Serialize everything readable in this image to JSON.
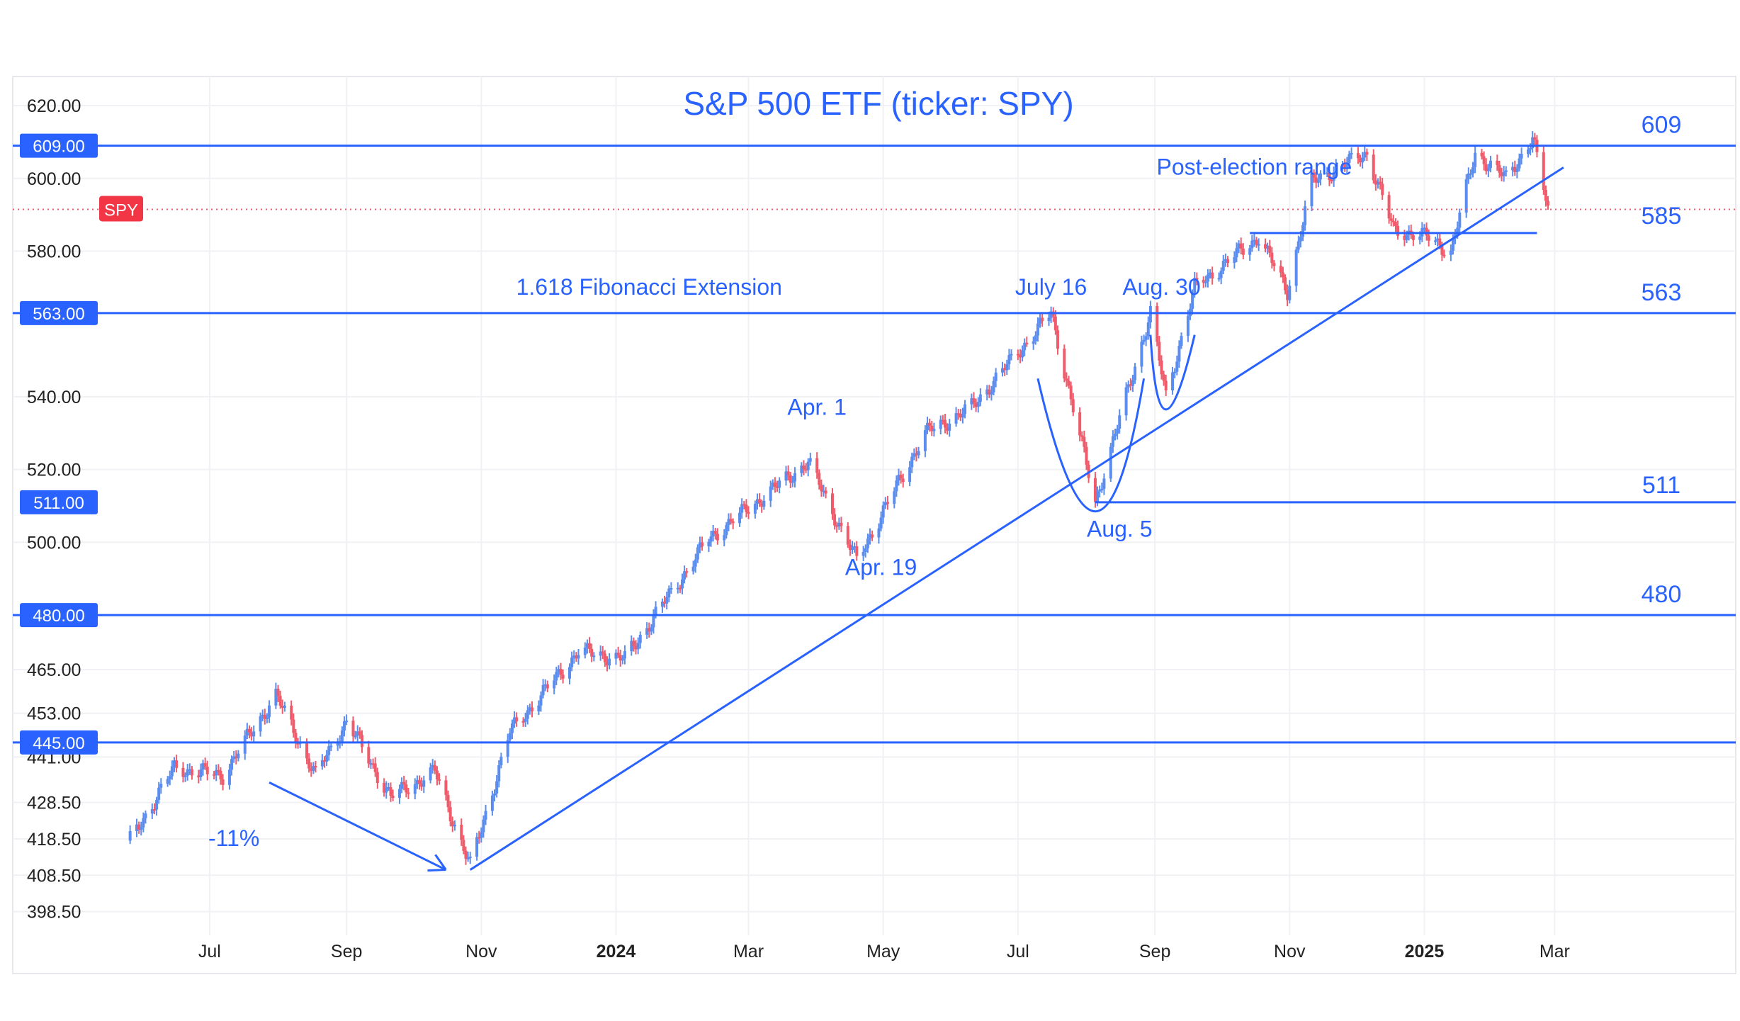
{
  "chart_data": {
    "type": "candlestick",
    "title": "S&P 500 ETF (ticker: SPY)",
    "symbol_tag": "SPY",
    "ylim": [
      392,
      628
    ],
    "y_ticks": [
      "620.00",
      "600.00",
      "580.00",
      "540.00",
      "520.00",
      "500.00",
      "465.00",
      "453.00",
      "441.00",
      "428.50",
      "418.50",
      "408.50",
      "398.50"
    ],
    "x_ticks": [
      {
        "label": "Jul",
        "date": "2023-07-01",
        "bold": false
      },
      {
        "label": "Sep",
        "date": "2023-09-01",
        "bold": false
      },
      {
        "label": "Nov",
        "date": "2023-11-01",
        "bold": false
      },
      {
        "label": "2024",
        "date": "2024-01-01",
        "bold": true
      },
      {
        "label": "Mar",
        "date": "2024-03-01",
        "bold": false
      },
      {
        "label": "May",
        "date": "2024-05-01",
        "bold": false
      },
      {
        "label": "Jul",
        "date": "2024-07-01",
        "bold": false
      },
      {
        "label": "Sep",
        "date": "2024-09-01",
        "bold": false
      },
      {
        "label": "Nov",
        "date": "2024-11-01",
        "bold": false
      },
      {
        "label": "2025",
        "date": "2025-01-01",
        "bold": true
      },
      {
        "label": "Mar",
        "date": "2025-03-01",
        "bold": false
      }
    ],
    "x_range": [
      "2023-05-12",
      "2025-05-22"
    ],
    "last_price": 591.5,
    "colors": {
      "up": "#5b8def",
      "down": "#ef5b6b",
      "line": "#2962ff",
      "text": "#2962ff",
      "axis_text": "#222222",
      "grid": "#f0f1f4"
    },
    "levels": [
      {
        "price": 609,
        "label": "609.00",
        "right_label": "609"
      },
      {
        "price": 563,
        "label": "563.00",
        "right_label": "563"
      },
      {
        "price": 480,
        "label": "480.00",
        "right_label": "480"
      },
      {
        "price": 445,
        "label": "445.00",
        "right_label": ""
      }
    ],
    "partial_levels": [
      {
        "price": 511,
        "label": "511.00",
        "right_label": "511",
        "from": "2024-08-05",
        "to": "2025-05-22"
      },
      {
        "price": 585,
        "label": "",
        "right_label": "585",
        "from": "2024-10-14",
        "to": "2025-02-21"
      }
    ],
    "trendlines": [
      {
        "name": "uptrend",
        "from": [
          "2023-10-27",
          410
        ],
        "to": [
          "2025-03-05",
          603
        ],
        "arrow": false
      },
      {
        "name": "decline-arrow",
        "from": [
          "2023-07-28",
          434
        ],
        "to": [
          "2023-10-16",
          410
        ],
        "arrow": true
      }
    ],
    "cup_patterns": [
      {
        "name": "cup-large",
        "points": [
          [
            "2024-07-10",
            545
          ],
          [
            "2024-08-05",
            508.5
          ],
          [
            "2024-08-27",
            545
          ]
        ]
      },
      {
        "name": "cup-small",
        "points": [
          [
            "2024-08-30",
            557
          ],
          [
            "2024-09-06",
            536.5
          ],
          [
            "2024-09-19",
            557
          ]
        ]
      }
    ],
    "annotations": [
      {
        "text": "1.618 Fibonacci Extension",
        "date": "2024-01-16",
        "price": 568
      },
      {
        "text": "July 16",
        "date": "2024-07-16",
        "price": 568
      },
      {
        "text": "Aug. 30",
        "date": "2024-09-04",
        "price": 568
      },
      {
        "text": "Post-election range",
        "date": "2024-10-16",
        "price": 601
      },
      {
        "text": "Apr. 1",
        "date": "2024-04-01",
        "price": 535
      },
      {
        "text": "Apr. 19",
        "date": "2024-04-30",
        "price": 491
      },
      {
        "text": "Aug. 5",
        "date": "2024-08-16",
        "price": 501.5
      },
      {
        "text": "-11%",
        "date": "2023-07-12",
        "price": 416.5
      }
    ],
    "anchors": [
      [
        "2023-05-26",
        418
      ],
      [
        "2023-06-15",
        438
      ],
      [
        "2023-07-07",
        436
      ],
      [
        "2023-07-31",
        458
      ],
      [
        "2023-08-18",
        436
      ],
      [
        "2023-09-01",
        451
      ],
      [
        "2023-09-21",
        430
      ],
      [
        "2023-10-11",
        437
      ],
      [
        "2023-10-27",
        411
      ],
      [
        "2023-11-14",
        448
      ],
      [
        "2023-12-15",
        470
      ],
      [
        "2024-01-05",
        468
      ],
      [
        "2024-02-12",
        501
      ],
      [
        "2024-03-28",
        522
      ],
      [
        "2024-04-19",
        495
      ],
      [
        "2024-05-20",
        530
      ],
      [
        "2024-06-10",
        537
      ],
      [
        "2024-07-16",
        563
      ],
      [
        "2024-08-05",
        511
      ],
      [
        "2024-08-30",
        563
      ],
      [
        "2024-09-06",
        540
      ],
      [
        "2024-09-19",
        570
      ],
      [
        "2024-10-18",
        584
      ],
      [
        "2024-10-31",
        569
      ],
      [
        "2024-11-11",
        599
      ],
      [
        "2024-12-06",
        607
      ],
      [
        "2024-12-18",
        586
      ],
      [
        "2025-01-02",
        584
      ],
      [
        "2025-01-13",
        580
      ],
      [
        "2025-01-24",
        607
      ],
      [
        "2025-02-07",
        600
      ],
      [
        "2025-02-19",
        611
      ],
      [
        "2025-02-26",
        591.5
      ]
    ]
  }
}
